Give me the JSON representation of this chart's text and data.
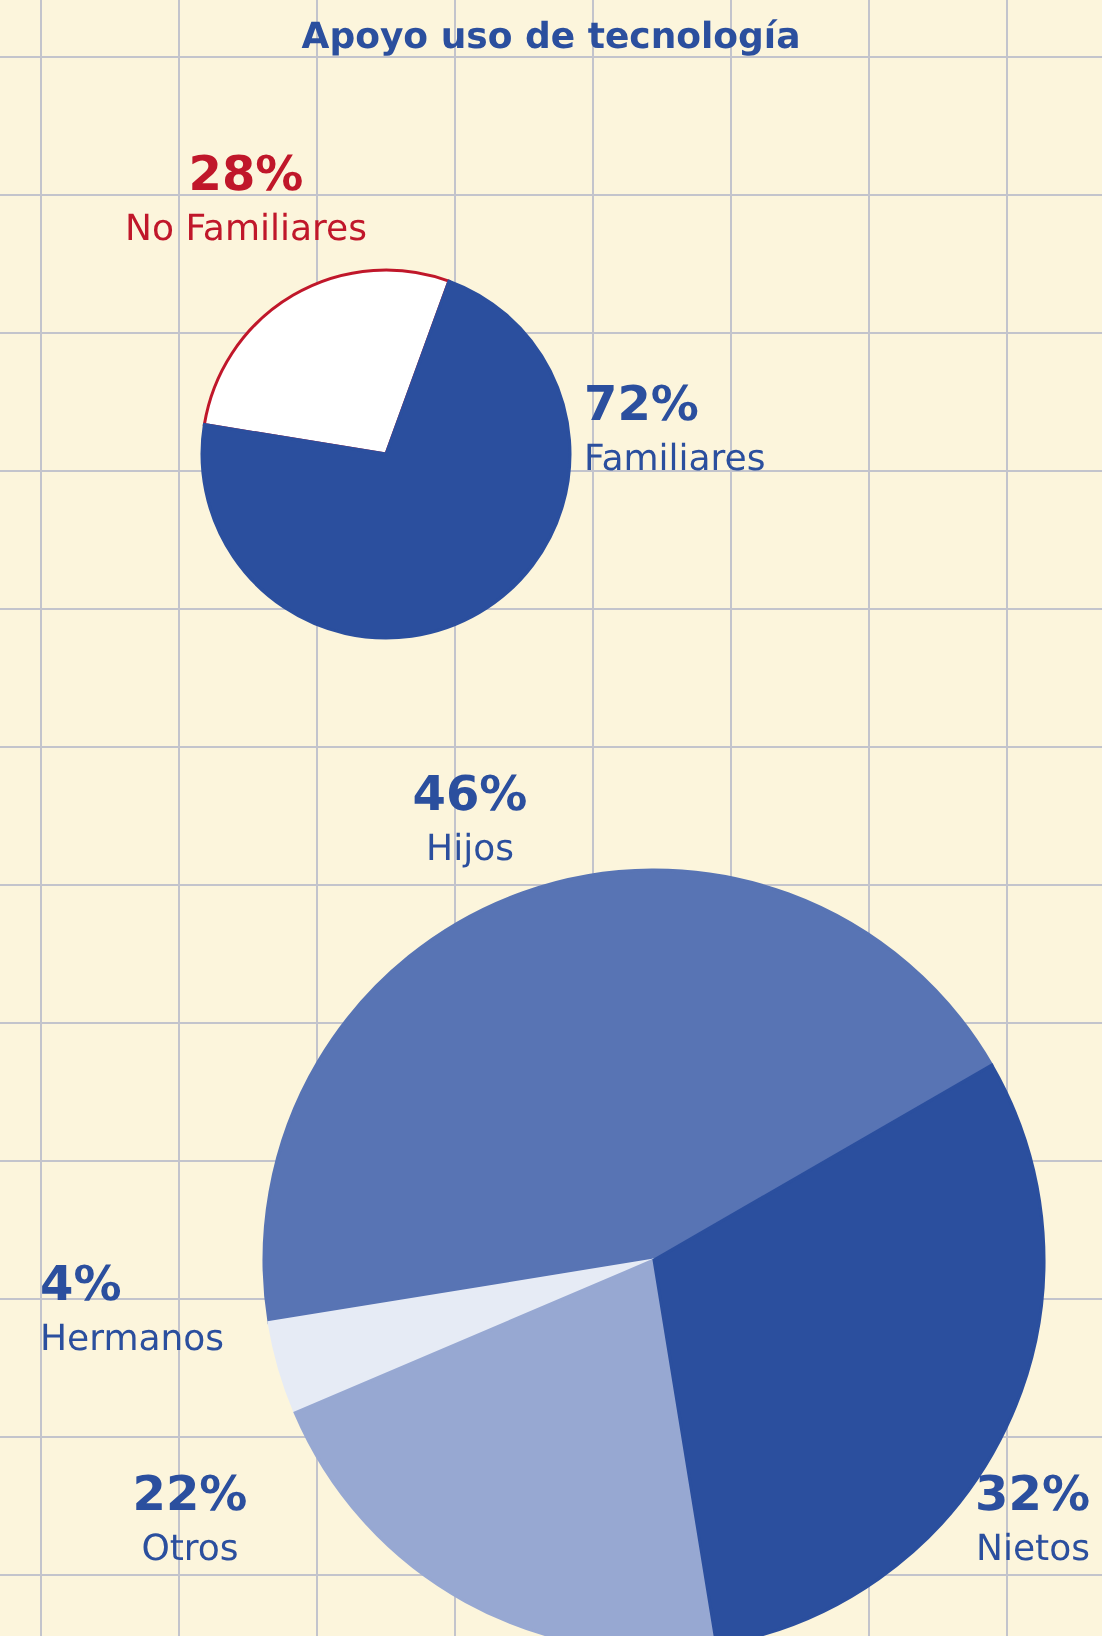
{
  "chart_data": [
    {
      "type": "pie",
      "title": "Apoyo uso de tecnología",
      "categories": [
        "No Familiares",
        "Familiares"
      ],
      "values": [
        28,
        72
      ],
      "value_labels": [
        "28%",
        "72%"
      ],
      "colors": [
        "#ffffff",
        "#2b4f9e"
      ]
    },
    {
      "type": "pie",
      "categories": [
        "Hijos",
        "Hermanos",
        "Otros",
        "Nietos"
      ],
      "values": [
        46,
        4,
        22,
        32
      ],
      "value_labels": [
        "46%",
        "4%",
        "22%",
        "32%"
      ],
      "colors": [
        "#5874b4",
        "#e6ebf5",
        "#97a8d2",
        "#2b4f9e"
      ]
    }
  ]
}
